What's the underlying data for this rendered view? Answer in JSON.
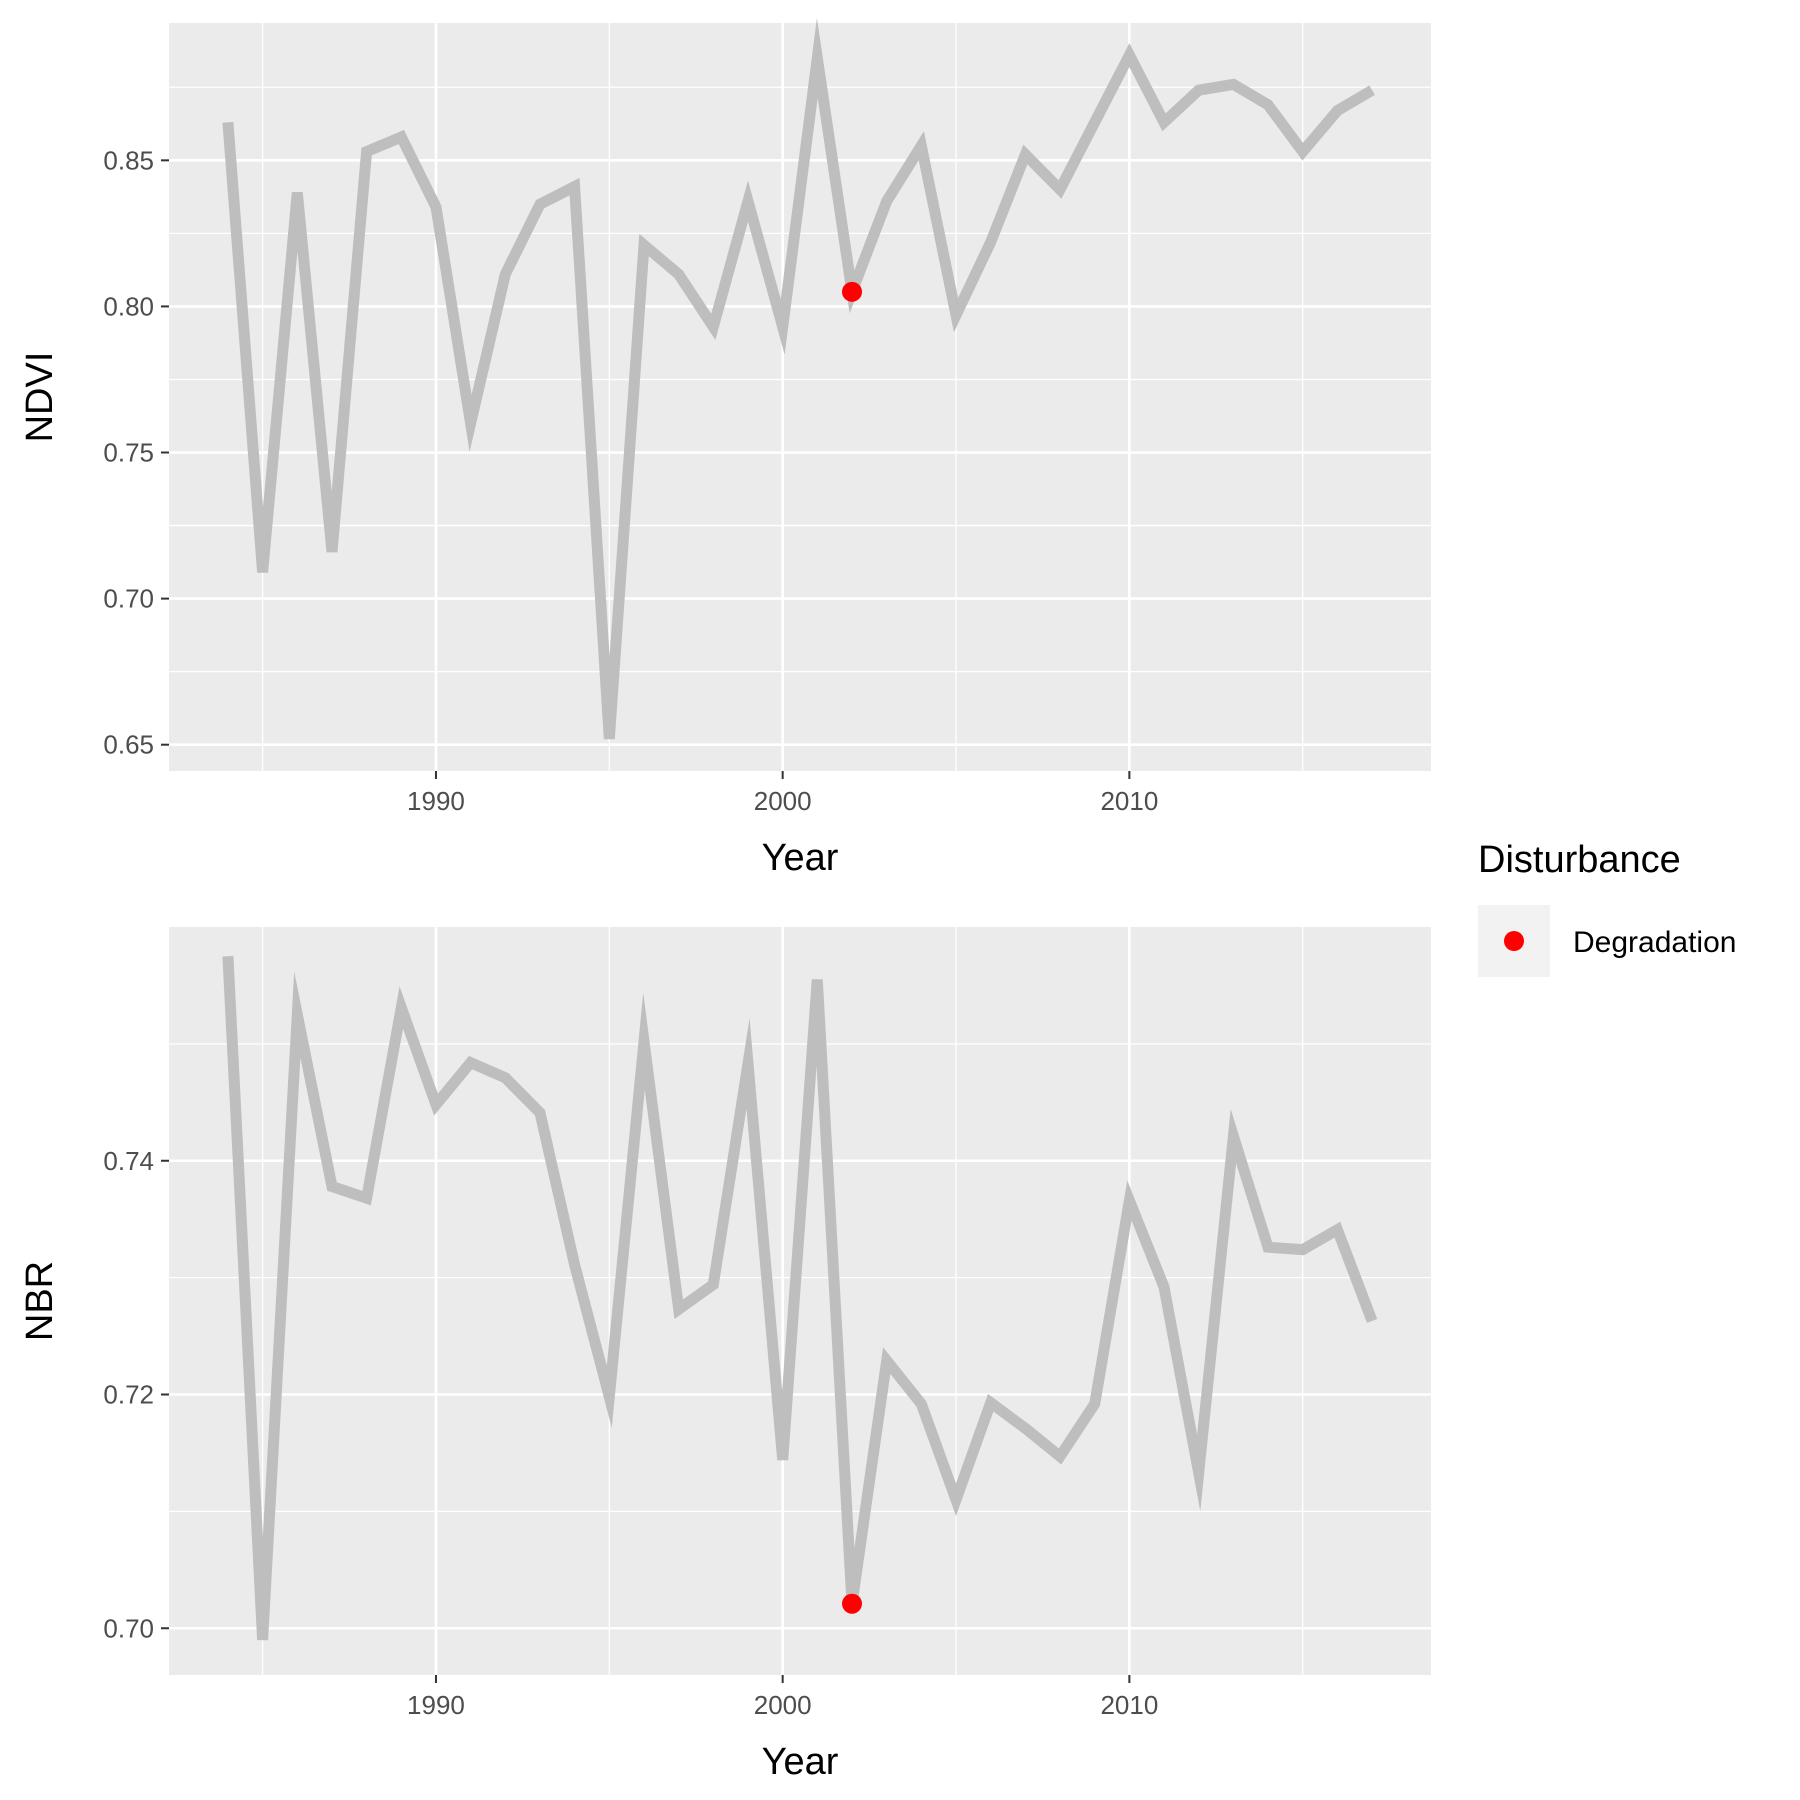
{
  "chart_data": [
    {
      "type": "line",
      "xlabel": "Year",
      "ylabel": "NDVI",
      "xlim": [
        1982.3,
        2018.7
      ],
      "ylim": [
        0.641,
        0.897
      ],
      "x_ticks": [
        1990,
        2000,
        2010
      ],
      "x_tick_labels": [
        "1990",
        "2000",
        "2010"
      ],
      "y_ticks": [
        0.65,
        0.7,
        0.75,
        0.8,
        0.85
      ],
      "y_tick_labels": [
        "0.65",
        "0.70",
        "0.75",
        "0.80",
        "0.85"
      ],
      "grid": true,
      "series": [
        {
          "color": "#bebebe",
          "x": [
            1984,
            1985,
            1986,
            1987,
            1988,
            1989,
            1990,
            1991,
            1992,
            1993,
            1994,
            1995,
            1996,
            1997,
            1998,
            1999,
            2000,
            2001,
            2002,
            2003,
            2004,
            2005,
            2006,
            2007,
            2008,
            2009,
            2010,
            2011,
            2012,
            2013,
            2014,
            2015,
            2016,
            2017
          ],
          "y": [
            0.863,
            0.709,
            0.839,
            0.716,
            0.853,
            0.858,
            0.834,
            0.76,
            0.811,
            0.835,
            0.841,
            0.652,
            0.821,
            0.811,
            0.793,
            0.836,
            0.793,
            0.885,
            0.805,
            0.836,
            0.855,
            0.797,
            0.822,
            0.852,
            0.84,
            0.863,
            0.886,
            0.863,
            0.874,
            0.876,
            0.869,
            0.853,
            0.867,
            0.874
          ]
        }
      ],
      "points": [
        {
          "x": 2002,
          "y": 0.805,
          "group": "Degradation",
          "color": "#ff0000"
        }
      ]
    },
    {
      "type": "line",
      "xlabel": "Year",
      "ylabel": "NBR",
      "xlim": [
        1982.3,
        2018.7
      ],
      "ylim": [
        0.696,
        0.76
      ],
      "x_ticks": [
        1990,
        2000,
        2010
      ],
      "x_tick_labels": [
        "1990",
        "2000",
        "2010"
      ],
      "y_ticks": [
        0.7,
        0.72,
        0.74
      ],
      "y_tick_labels": [
        "0.70",
        "0.72",
        "0.74"
      ],
      "grid": true,
      "series": [
        {
          "color": "#bebebe",
          "x": [
            1984,
            1985,
            1986,
            1987,
            1988,
            1989,
            1990,
            1991,
            1992,
            1993,
            1994,
            1995,
            1996,
            1997,
            1998,
            1999,
            2000,
            2001,
            2002,
            2003,
            2004,
            2005,
            2006,
            2007,
            2008,
            2009,
            2010,
            2011,
            2012,
            2013,
            2014,
            2015,
            2016,
            2017
          ],
          "y": [
            0.7575,
            0.699,
            0.7525,
            0.7378,
            0.7368,
            0.7531,
            0.7448,
            0.7484,
            0.7471,
            0.7441,
            0.7311,
            0.7198,
            0.7502,
            0.7273,
            0.7294,
            0.7483,
            0.7144,
            0.7555,
            0.7021,
            0.7229,
            0.7192,
            0.711,
            0.7193,
            0.7171,
            0.7147,
            0.7192,
            0.7366,
            0.7292,
            0.7133,
            0.7421,
            0.7326,
            0.7324,
            0.7341,
            0.7263
          ]
        }
      ],
      "points": [
        {
          "x": 2002,
          "y": 0.7021,
          "group": "Degradation",
          "color": "#ff0000"
        }
      ]
    }
  ],
  "legend": {
    "title": "Disturbance",
    "placement": "right",
    "items": [
      {
        "label": "Degradation",
        "color": "#ff0000"
      }
    ]
  },
  "colors": {
    "panel_background": "#ebebeb",
    "grid_major": "#ffffff",
    "line": "#bebebe",
    "point": "#ff0000"
  }
}
